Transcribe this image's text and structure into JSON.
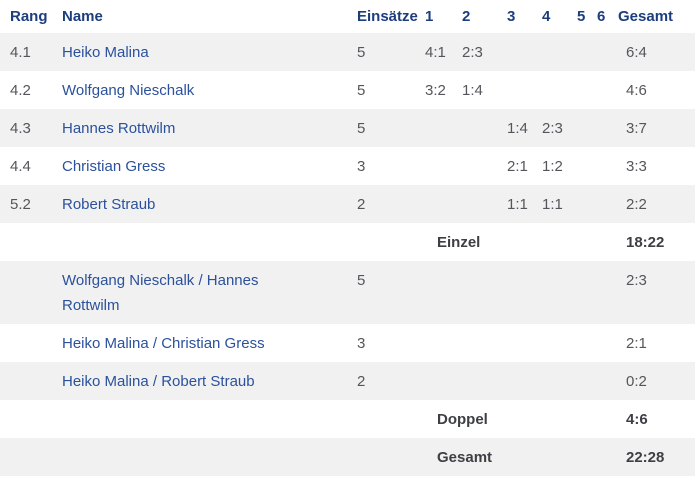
{
  "colors": {
    "header-blue": "#1d3e7d",
    "name-blue": "#2b519c",
    "value-gray": "#55565b",
    "bold-dark": "#3e3f44",
    "stripe-bg": "#f1f1f2"
  },
  "table": {
    "headers": {
      "rang": "Rang",
      "name": "Name",
      "einsaetze": "Einsätze",
      "rounds": [
        "1",
        "2",
        "3",
        "4",
        "5",
        "6"
      ],
      "gesamt": "Gesamt"
    },
    "singles": [
      {
        "rang": "4.1",
        "name": "Heiko Malina",
        "einsaetze": "5",
        "rounds": [
          "4:1",
          "2:3",
          "",
          "",
          "",
          ""
        ],
        "gesamt": "6:4"
      },
      {
        "rang": "4.2",
        "name": "Wolfgang Nieschalk",
        "einsaetze": "5",
        "rounds": [
          "3:2",
          "1:4",
          "",
          "",
          "",
          ""
        ],
        "gesamt": "4:6"
      },
      {
        "rang": "4.3",
        "name": "Hannes Rottwilm",
        "einsaetze": "5",
        "rounds": [
          "",
          "",
          "1:4",
          "2:3",
          "",
          ""
        ],
        "gesamt": "3:7"
      },
      {
        "rang": "4.4",
        "name": "Christian Gress",
        "einsaetze": "3",
        "rounds": [
          "",
          "",
          "2:1",
          "1:2",
          "",
          ""
        ],
        "gesamt": "3:3"
      },
      {
        "rang": "5.2",
        "name": "Robert Straub",
        "einsaetze": "2",
        "rounds": [
          "",
          "",
          "1:1",
          "1:1",
          "",
          ""
        ],
        "gesamt": "2:2"
      }
    ],
    "einzel_row": {
      "label": "Einzel",
      "total": "18:22"
    },
    "doubles": [
      {
        "name": "Wolfgang Nieschalk / Hannes Rottwilm",
        "einsaetze": "5",
        "gesamt": "2:3"
      },
      {
        "name": "Heiko Malina / Christian Gress",
        "einsaetze": "3",
        "gesamt": "2:1"
      },
      {
        "name": "Heiko Malina / Robert Straub",
        "einsaetze": "2",
        "gesamt": "0:2"
      }
    ],
    "doppel_row": {
      "label": "Doppel",
      "total": "4:6"
    },
    "gesamt_row": {
      "label": "Gesamt",
      "total": "22:28"
    }
  }
}
